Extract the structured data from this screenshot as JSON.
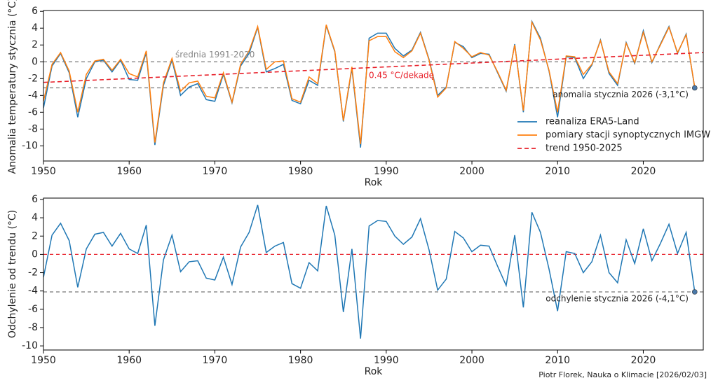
{
  "chart_data": [
    {
      "type": "line",
      "y_label": "Anomalia temperatury stycznia (°C)",
      "x_label": "Rok",
      "xlim": [
        1950,
        2027
      ],
      "xticks": [
        1950,
        1960,
        1970,
        1980,
        1990,
        2000,
        2010,
        2020
      ],
      "ylim": [
        -11.8,
        6.1
      ],
      "yticks": [
        -10,
        -8,
        -6,
        -4,
        -2,
        0,
        2,
        4,
        6
      ],
      "legend": "lower right",
      "x": [
        1950,
        1951,
        1952,
        1953,
        1954,
        1955,
        1956,
        1957,
        1958,
        1959,
        1960,
        1961,
        1962,
        1963,
        1964,
        1965,
        1966,
        1967,
        1968,
        1969,
        1970,
        1971,
        1972,
        1973,
        1974,
        1975,
        1976,
        1977,
        1978,
        1979,
        1980,
        1981,
        1982,
        1983,
        1984,
        1985,
        1986,
        1987,
        1988,
        1989,
        1990,
        1991,
        1992,
        1993,
        1994,
        1995,
        1996,
        1997,
        1998,
        1999,
        2000,
        2001,
        2002,
        2003,
        2004,
        2005,
        2006,
        2007,
        2008,
        2009,
        2010,
        2011,
        2012,
        2013,
        2014,
        2015,
        2016,
        2017,
        2018,
        2019,
        2020,
        2021,
        2022,
        2023,
        2024,
        2025,
        2026
      ],
      "series": [
        {
          "name": "reanaliza ERA5-Land",
          "color": "#1f77b4",
          "style": "solid",
          "values": [
            -5.5,
            -0.5,
            1.0,
            -1.3,
            -6.6,
            -2.0,
            0.0,
            0.2,
            -1.2,
            0.2,
            -2.1,
            -2.2,
            1.1,
            -9.9,
            -2.8,
            0.2,
            -4.0,
            -3.0,
            -2.6,
            -4.5,
            -4.7,
            -1.5,
            -4.9,
            -0.5,
            1.0,
            4.1,
            -1.2,
            -0.8,
            -0.3,
            -4.6,
            -5.0,
            -2.2,
            -2.8,
            4.3,
            1.2,
            -7.1,
            -0.8,
            -10.2,
            2.8,
            3.4,
            3.4,
            1.6,
            0.7,
            1.4,
            3.5,
            0.3,
            -4.0,
            -3.0,
            2.3,
            1.8,
            0.5,
            1.0,
            0.9,
            -1.3,
            -3.5,
            2.1,
            -6.0,
            4.8,
            2.8,
            -1.1,
            -6.6,
            0.6,
            0.5,
            -2.0,
            -0.4,
            2.6,
            -1.4,
            -2.8,
            2.3,
            -0.2,
            3.7,
            -0.1,
            2.1,
            4.2,
            1.0,
            3.3,
            -3.1
          ]
        },
        {
          "name": "pomiary stacji synoptycznych IMGW",
          "color": "#ff7f0e",
          "style": "solid",
          "values": [
            -4.7,
            -0.3,
            1.1,
            -1.1,
            -6.0,
            -1.5,
            0.1,
            0.3,
            -1.0,
            0.3,
            -1.4,
            -1.8,
            1.3,
            -9.6,
            -2.5,
            0.4,
            -3.5,
            -2.5,
            -2.3,
            -4.1,
            -4.3,
            -1.3,
            -4.8,
            -0.3,
            1.3,
            4.2,
            -0.9,
            0.0,
            0.1,
            -4.4,
            -4.8,
            -1.8,
            -2.6,
            4.4,
            1.3,
            -7.0,
            -0.6,
            -9.8,
            2.5,
            3.0,
            3.0,
            1.2,
            0.5,
            1.3,
            3.4,
            0.2,
            -4.2,
            -3.1,
            2.4,
            1.6,
            0.6,
            1.1,
            0.8,
            -1.2,
            -3.4,
            2.0,
            -5.8,
            4.7,
            2.6,
            -1.0,
            -6.0,
            0.7,
            0.6,
            -1.5,
            -0.3,
            2.5,
            -1.2,
            -2.6,
            2.2,
            -0.1,
            3.5,
            0.0,
            2.0,
            4.1,
            1.1,
            3.2,
            -3.0
          ]
        },
        {
          "name": "trend 1950-2025",
          "color": "#e8202a",
          "style": "dashed",
          "x": [
            1950,
            2027
          ],
          "values": [
            -2.45,
            1.1
          ]
        }
      ],
      "hlines": [
        {
          "value": 0,
          "label": "średnia 1991-2020",
          "color": "#777777"
        },
        {
          "value": -3.1,
          "label": "anomalia stycznia 2026 (-3,1°C)",
          "color": "#777777"
        }
      ],
      "annotation": "0.45 °C/dekadę"
    },
    {
      "type": "line",
      "y_label": "Odchylenie od trendu (°C)",
      "x_label": "Rok",
      "xlim": [
        1950,
        2027
      ],
      "xticks": [
        1950,
        1960,
        1970,
        1980,
        1990,
        2000,
        2010,
        2020
      ],
      "ylim": [
        -10.45,
        6.15
      ],
      "yticks": [
        -10,
        -8,
        -6,
        -4,
        -2,
        0,
        2,
        4,
        6
      ],
      "x": [
        1950,
        1951,
        1952,
        1953,
        1954,
        1955,
        1956,
        1957,
        1958,
        1959,
        1960,
        1961,
        1962,
        1963,
        1964,
        1965,
        1966,
        1967,
        1968,
        1969,
        1970,
        1971,
        1972,
        1973,
        1974,
        1975,
        1976,
        1977,
        1978,
        1979,
        1980,
        1981,
        1982,
        1983,
        1984,
        1985,
        1986,
        1987,
        1988,
        1989,
        1990,
        1991,
        1992,
        1993,
        1994,
        1995,
        1996,
        1997,
        1998,
        1999,
        2000,
        2001,
        2002,
        2003,
        2004,
        2005,
        2006,
        2007,
        2008,
        2009,
        2010,
        2011,
        2012,
        2013,
        2014,
        2015,
        2016,
        2017,
        2018,
        2019,
        2020,
        2021,
        2022,
        2023,
        2024,
        2025,
        2026
      ],
      "series": [
        {
          "color": "#1f77b4",
          "style": "solid",
          "values": [
            -2.5,
            2.1,
            3.4,
            1.5,
            -3.6,
            0.6,
            2.2,
            2.4,
            0.9,
            2.3,
            0.6,
            0.1,
            3.2,
            -7.8,
            -0.6,
            2.1,
            -1.9,
            -0.8,
            -0.7,
            -2.6,
            -2.8,
            -0.3,
            -3.3,
            0.8,
            2.4,
            5.4,
            0.2,
            0.9,
            1.3,
            -3.2,
            -3.7,
            -0.9,
            -1.8,
            5.3,
            2.1,
            -6.3,
            0.6,
            -9.2,
            3.1,
            3.7,
            3.6,
            2.0,
            1.1,
            1.9,
            3.9,
            0.5,
            -3.9,
            -2.7,
            2.5,
            1.8,
            0.3,
            1.0,
            0.9,
            -1.3,
            -3.4,
            2.1,
            -5.8,
            4.6,
            2.4,
            -1.6,
            -6.2,
            0.3,
            0.1,
            -2.0,
            -0.8,
            2.1,
            -2.0,
            -3.1,
            1.6,
            -1.0,
            2.8,
            -0.7,
            1.2,
            3.3,
            0.1,
            2.4,
            -4.1
          ]
        }
      ],
      "hlines": [
        {
          "value": 0,
          "color": "#e8202a"
        },
        {
          "value": -4.1,
          "label": "odchylenie stycznia 2026 (-4,1°C)",
          "color": "#777777"
        }
      ]
    }
  ],
  "credit": "Piotr Florek, Nauka o Klimacie [2026/02/03]"
}
